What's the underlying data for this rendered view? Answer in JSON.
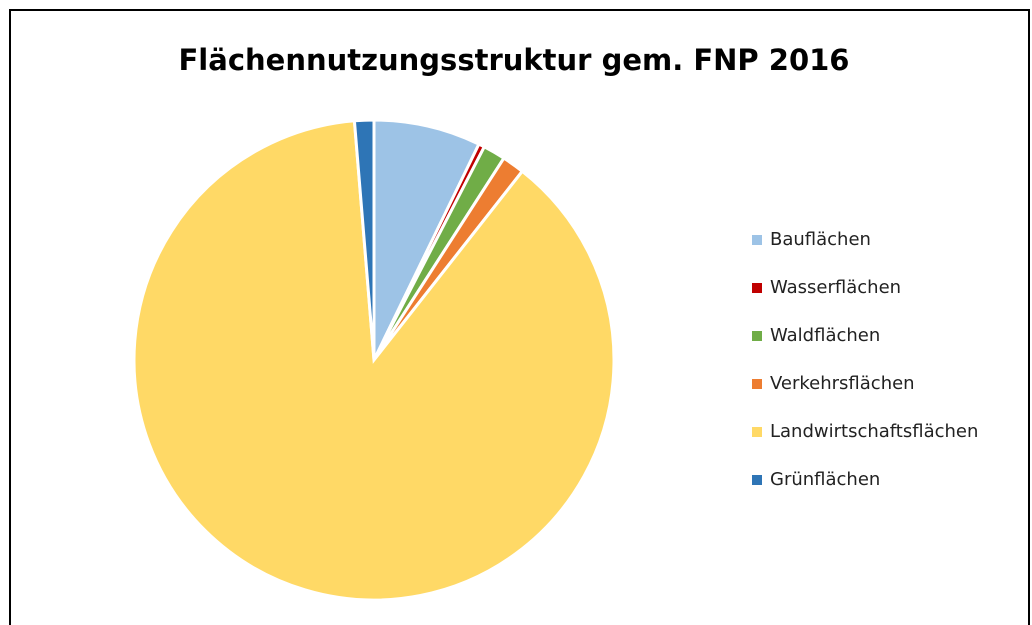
{
  "chart_data": {
    "type": "pie",
    "title": "Flächennutzungsstruktur gem. FNP 2016",
    "categories": [
      "Bauflächen",
      "Wasserflächen",
      "Waldflächen",
      "Verkehrsflächen",
      "Landwirtschaftsflächen",
      "Grünflächen"
    ],
    "values": [
      7.2,
      0.4,
      1.5,
      1.5,
      88.1,
      1.3
    ],
    "colors": [
      "#9dc3e6",
      "#c00000",
      "#70ad47",
      "#ed7d31",
      "#ffd966",
      "#2e75b6"
    ],
    "legend": "right"
  }
}
